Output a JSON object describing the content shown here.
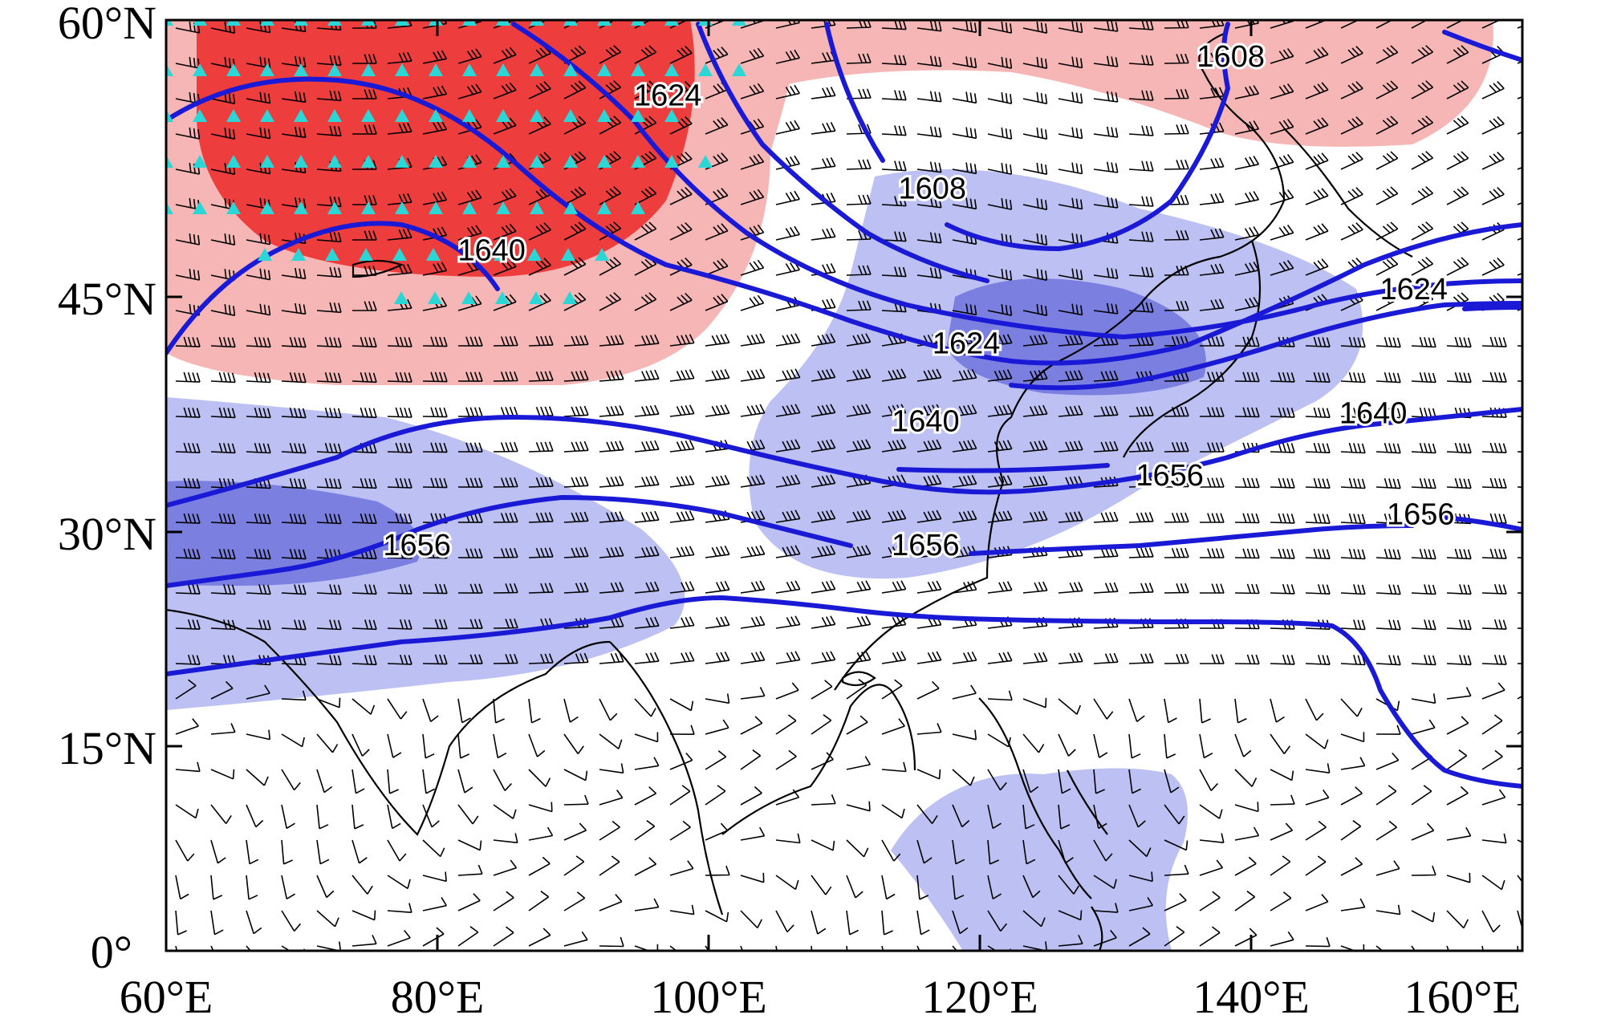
{
  "map": {
    "lat_ticks": [
      "60°N",
      "45°N",
      "30°N",
      "15°N",
      "0°"
    ],
    "lon_ticks": [
      "60°E",
      "80°E",
      "100°E",
      "120°E",
      "140°E",
      "160°E"
    ],
    "extent": {
      "lon_min": 60,
      "lon_max": 160,
      "lat_min": 0,
      "lat_max": 60
    }
  },
  "contour_labels": [
    {
      "text": "1624",
      "lon": 97,
      "lat": 54.5
    },
    {
      "text": "1640",
      "lon": 84,
      "lat": 44.5
    },
    {
      "text": "1608",
      "lon": 116.5,
      "lat": 48.5
    },
    {
      "text": "1608",
      "lon": 138.5,
      "lat": 57
    },
    {
      "text": "1624",
      "lon": 119,
      "lat": 38.5
    },
    {
      "text": "1624",
      "lon": 152,
      "lat": 42
    },
    {
      "text": "1640",
      "lon": 116,
      "lat": 33.5
    },
    {
      "text": "1640",
      "lon": 149,
      "lat": 34
    },
    {
      "text": "1656",
      "lon": 78.5,
      "lat": 25.5
    },
    {
      "text": "1656",
      "lon": 116,
      "lat": 25.5
    },
    {
      "text": "1656",
      "lon": 152.5,
      "lat": 27.5
    },
    {
      "text": "1656",
      "lon": 134,
      "lat": 30
    }
  ],
  "colors": {
    "warm_light": "#f7b6b6",
    "warm_dark": "#ee3d3d",
    "cool_light": "#bcc0f2",
    "cool_dark": "#7a7fe0",
    "contour": "#1a1ad6",
    "significance_marker": "#2bd6d6",
    "wind_barb": "#000000",
    "coastline": "#000000"
  }
}
